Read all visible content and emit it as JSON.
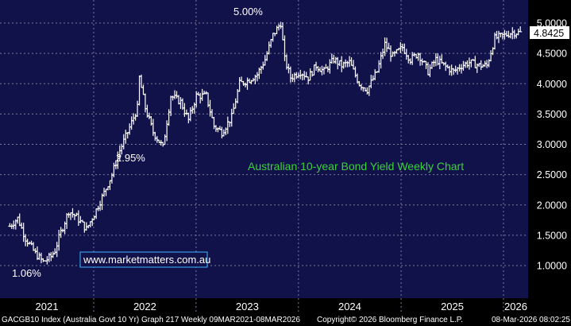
{
  "chart_data": {
    "type": "bar",
    "subtype": "weekly OHLC",
    "title": "Australian 10-year Bond Yield Weekly Chart",
    "watermark": "www.marketmatters.com.au",
    "footer": {
      "left": "GACGB10 Index (Australia Govt 10 Yr) Graph 217 Weekly 09MAR2021-08MAR2026",
      "center": "Copyright© 2026 Bloomberg Finance L.P.",
      "right": "08-Mar-2026 08:02:25"
    },
    "x_ticks": [
      "2021",
      "2022",
      "2023",
      "2024",
      "2025",
      "2026"
    ],
    "y_ticks": [
      "5.0000",
      "4.5000",
      "4.0000",
      "3.5000",
      "3.0000",
      "2.5000",
      "2.0000",
      "1.5000",
      "1.0000"
    ],
    "ylim": [
      0.6,
      5.3
    ],
    "last_price": "4.8425",
    "annotations": {
      "low_2021": "1.06%",
      "low_2022": "2.95%",
      "high_2023": "5.00%"
    },
    "colors": {
      "background": "#000000",
      "plot_background": "#12124a",
      "bars": "#ffffff",
      "title": "#3bd13b",
      "watermark_text": "#ffffff",
      "watermark_border": "#3ab3ff",
      "last_price_box": "#ffffff"
    },
    "series": [
      {
        "x": [
          "2021-03-08",
          "2021-04-05",
          "2021-05-03",
          "2021-06-07",
          "2021-07-05",
          "2021-08-02",
          "2021-08-16",
          "2021-09-06",
          "2021-10-04",
          "2021-11-01",
          "2021-12-06",
          "2022-01-03",
          "2022-02-07",
          "2022-03-07",
          "2022-04-04",
          "2022-05-02",
          "2022-06-06",
          "2022-06-13",
          "2022-07-04",
          "2022-08-01",
          "2022-09-05",
          "2022-10-03",
          "2022-11-07",
          "2022-12-05",
          "2023-01-02",
          "2023-02-06",
          "2023-03-06",
          "2023-04-03",
          "2023-05-08",
          "2023-06-05",
          "2023-07-03",
          "2023-08-07",
          "2023-09-04",
          "2023-10-02",
          "2023-10-30",
          "2023-11-13",
          "2023-12-04",
          "2024-01-08",
          "2024-02-05",
          "2024-03-04",
          "2024-04-01",
          "2024-05-06",
          "2024-06-03",
          "2024-07-01",
          "2024-08-05",
          "2024-09-02",
          "2024-10-07",
          "2024-11-04",
          "2024-12-02",
          "2025-01-06",
          "2025-02-03",
          "2025-03-03",
          "2025-04-07",
          "2025-05-05",
          "2025-06-02",
          "2025-07-07",
          "2025-08-04",
          "2025-09-01",
          "2025-10-06",
          "2025-11-03",
          "2025-12-01",
          "2026-01-05",
          "2026-02-02",
          "2026-03-02"
        ],
        "values": [
          1.65,
          1.78,
          1.45,
          1.2,
          1.06,
          1.15,
          1.25,
          1.55,
          1.9,
          1.8,
          1.6,
          1.85,
          2.2,
          2.5,
          2.9,
          3.2,
          3.6,
          4.1,
          3.6,
          3.2,
          2.95,
          3.8,
          3.7,
          3.4,
          3.8,
          3.8,
          3.3,
          3.2,
          3.45,
          4.0,
          4.05,
          4.15,
          4.4,
          4.8,
          5.0,
          4.4,
          4.1,
          4.2,
          4.1,
          4.3,
          4.2,
          4.4,
          4.3,
          4.35,
          4.0,
          3.9,
          4.2,
          4.65,
          4.45,
          4.6,
          4.4,
          4.5,
          4.2,
          4.4,
          4.3,
          4.2,
          4.3,
          4.35,
          4.3,
          4.3,
          4.75,
          4.8,
          4.85,
          4.84
        ]
      }
    ]
  }
}
